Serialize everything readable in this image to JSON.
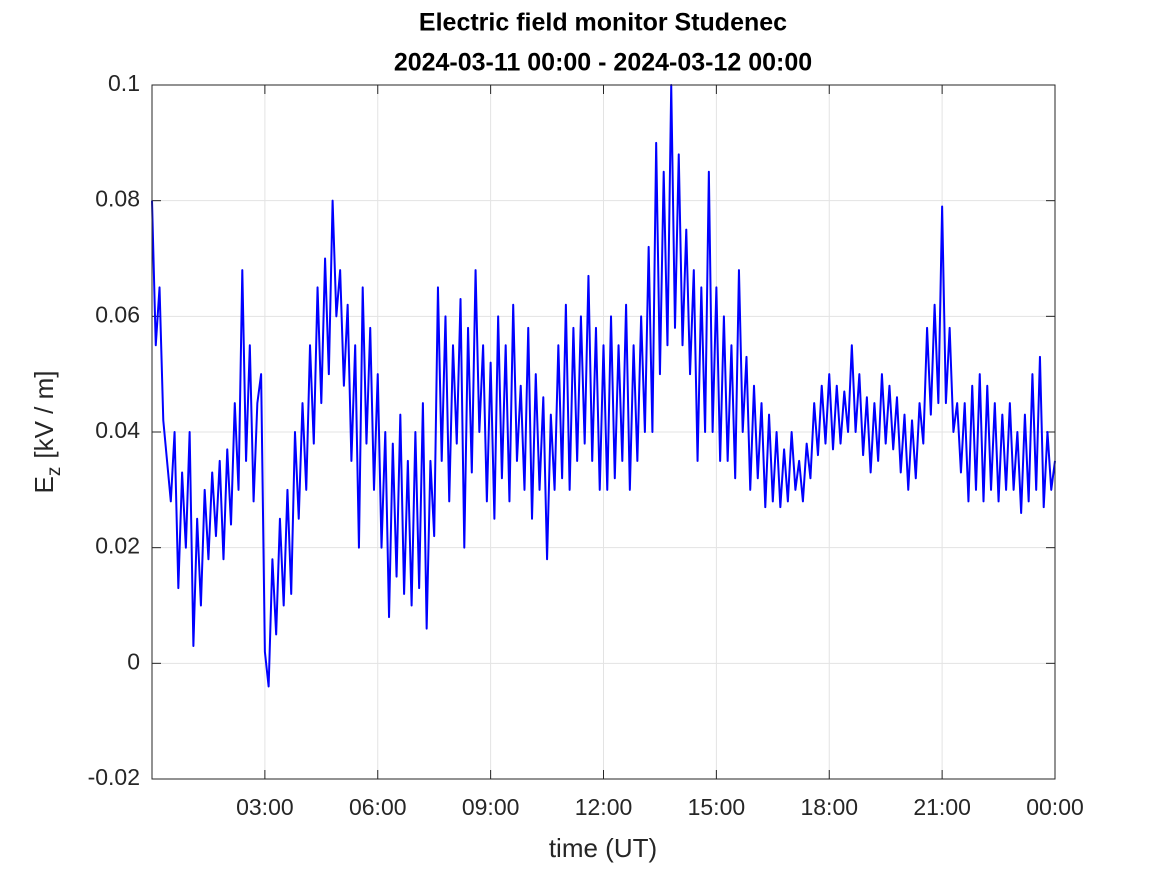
{
  "chart_data": {
    "type": "line",
    "title": "Electric field monitor Studenec",
    "subtitle": "2024-03-11 00:00 - 2024-03-12 00:00",
    "x_label": "time (UT)",
    "y_label": {
      "symbol": "E",
      "subscript": "z",
      "unit": "[kV / m]"
    },
    "color": "#0000ff",
    "grid": true,
    "xlim": [
      0,
      24
    ],
    "xticks": [
      {
        "value": 3,
        "label": "03:00"
      },
      {
        "value": 6,
        "label": "06:00"
      },
      {
        "value": 9,
        "label": "09:00"
      },
      {
        "value": 12,
        "label": "12:00"
      },
      {
        "value": 15,
        "label": "15:00"
      },
      {
        "value": 18,
        "label": "18:00"
      },
      {
        "value": 21,
        "label": "21:00"
      },
      {
        "value": 24,
        "label": "00:00"
      }
    ],
    "ylim": [
      -0.02,
      0.1
    ],
    "yticks": [
      -0.02,
      0,
      0.02,
      0.04,
      0.06,
      0.08,
      0.1
    ],
    "x": [
      0,
      0.1,
      0.2,
      0.3,
      0.4,
      0.5,
      0.6,
      0.7,
      0.8,
      0.9,
      1,
      1.1,
      1.2,
      1.3,
      1.4,
      1.5,
      1.6,
      1.7,
      1.8,
      1.9,
      2,
      2.1,
      2.2,
      2.3,
      2.4,
      2.5,
      2.6,
      2.7,
      2.8,
      2.9,
      3,
      3.1,
      3.2,
      3.3,
      3.4,
      3.5,
      3.6,
      3.7,
      3.8,
      3.9,
      4,
      4.1,
      4.2,
      4.3,
      4.4,
      4.5,
      4.6,
      4.7,
      4.8,
      4.9,
      5,
      5.1,
      5.2,
      5.3,
      5.4,
      5.5,
      5.6,
      5.7,
      5.8,
      5.9,
      6,
      6.1,
      6.2,
      6.3,
      6.4,
      6.5,
      6.6,
      6.7,
      6.8,
      6.9,
      7,
      7.1,
      7.2,
      7.3,
      7.4,
      7.5,
      7.6,
      7.7,
      7.8,
      7.9,
      8,
      8.1,
      8.2,
      8.3,
      8.4,
      8.5,
      8.6,
      8.7,
      8.8,
      8.9,
      9,
      9.1,
      9.2,
      9.3,
      9.4,
      9.5,
      9.6,
      9.7,
      9.8,
      9.9,
      10,
      10.1,
      10.2,
      10.3,
      10.4,
      10.5,
      10.6,
      10.7,
      10.8,
      10.9,
      11,
      11.1,
      11.2,
      11.3,
      11.4,
      11.5,
      11.6,
      11.7,
      11.8,
      11.9,
      12,
      12.1,
      12.2,
      12.3,
      12.4,
      12.5,
      12.6,
      12.7,
      12.8,
      12.9,
      13,
      13.1,
      13.2,
      13.3,
      13.4,
      13.5,
      13.6,
      13.7,
      13.8,
      13.9,
      14,
      14.1,
      14.2,
      14.3,
      14.4,
      14.5,
      14.6,
      14.7,
      14.8,
      14.9,
      15,
      15.1,
      15.2,
      15.3,
      15.4,
      15.5,
      15.6,
      15.7,
      15.8,
      15.9,
      16,
      16.1,
      16.2,
      16.3,
      16.4,
      16.5,
      16.6,
      16.7,
      16.8,
      16.9,
      17,
      17.1,
      17.2,
      17.3,
      17.4,
      17.5,
      17.6,
      17.7,
      17.8,
      17.9,
      18,
      18.1,
      18.2,
      18.3,
      18.4,
      18.5,
      18.6,
      18.7,
      18.8,
      18.9,
      19,
      19.1,
      19.2,
      19.3,
      19.4,
      19.5,
      19.6,
      19.7,
      19.8,
      19.9,
      20,
      20.1,
      20.2,
      20.3,
      20.4,
      20.5,
      20.6,
      20.7,
      20.8,
      20.9,
      21,
      21.1,
      21.2,
      21.3,
      21.4,
      21.5,
      21.6,
      21.7,
      21.8,
      21.9,
      22,
      22.1,
      22.2,
      22.3,
      22.4,
      22.5,
      22.6,
      22.7,
      22.8,
      22.9,
      23,
      23.1,
      23.2,
      23.3,
      23.4,
      23.5,
      23.6,
      23.7,
      23.8,
      23.9,
      24
    ],
    "values": [
      0.08,
      0.055,
      0.065,
      0.042,
      0.035,
      0.028,
      0.04,
      0.013,
      0.033,
      0.02,
      0.04,
      0.003,
      0.025,
      0.01,
      0.03,
      0.018,
      0.033,
      0.022,
      0.035,
      0.018,
      0.037,
      0.024,
      0.045,
      0.03,
      0.068,
      0.035,
      0.055,
      0.028,
      0.045,
      0.05,
      0.002,
      -0.004,
      0.018,
      0.005,
      0.025,
      0.01,
      0.03,
      0.012,
      0.04,
      0.025,
      0.045,
      0.03,
      0.055,
      0.038,
      0.065,
      0.045,
      0.07,
      0.05,
      0.08,
      0.06,
      0.068,
      0.048,
      0.062,
      0.035,
      0.055,
      0.02,
      0.065,
      0.038,
      0.058,
      0.03,
      0.05,
      0.02,
      0.04,
      0.008,
      0.038,
      0.015,
      0.043,
      0.012,
      0.035,
      0.01,
      0.04,
      0.013,
      0.045,
      0.006,
      0.035,
      0.022,
      0.065,
      0.035,
      0.06,
      0.028,
      0.055,
      0.038,
      0.063,
      0.02,
      0.058,
      0.033,
      0.068,
      0.04,
      0.055,
      0.028,
      0.052,
      0.025,
      0.06,
      0.032,
      0.055,
      0.028,
      0.062,
      0.035,
      0.048,
      0.03,
      0.058,
      0.025,
      0.05,
      0.03,
      0.046,
      0.018,
      0.043,
      0.03,
      0.055,
      0.032,
      0.062,
      0.03,
      0.058,
      0.035,
      0.06,
      0.038,
      0.067,
      0.035,
      0.058,
      0.03,
      0.055,
      0.03,
      0.06,
      0.032,
      0.055,
      0.035,
      0.062,
      0.03,
      0.055,
      0.035,
      0.06,
      0.04,
      0.072,
      0.04,
      0.09,
      0.05,
      0.085,
      0.055,
      0.1,
      0.058,
      0.088,
      0.055,
      0.075,
      0.05,
      0.068,
      0.035,
      0.065,
      0.04,
      0.085,
      0.04,
      0.065,
      0.035,
      0.06,
      0.035,
      0.055,
      0.032,
      0.068,
      0.04,
      0.053,
      0.03,
      0.048,
      0.032,
      0.045,
      0.027,
      0.043,
      0.028,
      0.04,
      0.027,
      0.037,
      0.028,
      0.04,
      0.03,
      0.035,
      0.028,
      0.038,
      0.032,
      0.045,
      0.036,
      0.048,
      0.038,
      0.05,
      0.037,
      0.048,
      0.038,
      0.047,
      0.04,
      0.055,
      0.04,
      0.05,
      0.036,
      0.046,
      0.033,
      0.045,
      0.035,
      0.05,
      0.038,
      0.048,
      0.037,
      0.046,
      0.033,
      0.043,
      0.03,
      0.042,
      0.032,
      0.045,
      0.038,
      0.058,
      0.043,
      0.062,
      0.045,
      0.079,
      0.045,
      0.058,
      0.04,
      0.045,
      0.033,
      0.045,
      0.028,
      0.048,
      0.03,
      0.05,
      0.028,
      0.048,
      0.03,
      0.045,
      0.028,
      0.043,
      0.03,
      0.045,
      0.03,
      0.04,
      0.026,
      0.043,
      0.028,
      0.05,
      0.03,
      0.053,
      0.027,
      0.04,
      0.03,
      0.035
    ]
  }
}
